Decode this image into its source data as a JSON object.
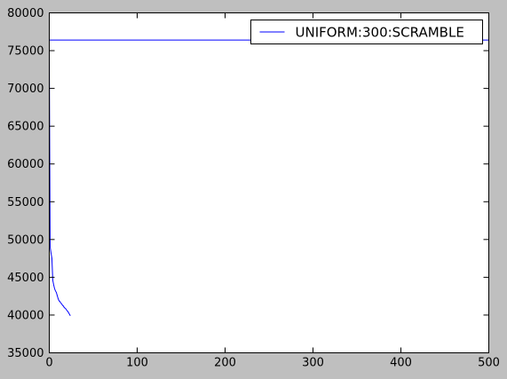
{
  "chart_data": {
    "type": "line",
    "title": "",
    "xlabel": "",
    "ylabel": "",
    "xlim": [
      0,
      500
    ],
    "ylim": [
      35000,
      80000
    ],
    "x_ticks": [
      0,
      100,
      200,
      300,
      400,
      500
    ],
    "y_ticks": [
      35000,
      40000,
      45000,
      50000,
      55000,
      60000,
      65000,
      70000,
      75000,
      80000
    ],
    "grid": false,
    "legend_position": "top-right",
    "series": [
      {
        "name": "UNIFORM:300:SCRAMBLE",
        "color": "#0000ff",
        "x": [
          500,
          0,
          0,
          0.5,
          1,
          2,
          3,
          4,
          5,
          6,
          7,
          8,
          9,
          10,
          11,
          12,
          13,
          14,
          15,
          16,
          17,
          18,
          19,
          20,
          21,
          22,
          23,
          24
        ],
        "y": [
          76400,
          76400,
          75500,
          62000,
          49000,
          48200,
          47500,
          44600,
          44000,
          43500,
          43200,
          43000,
          42600,
          42200,
          41900,
          41800,
          41600,
          41500,
          41300,
          41200,
          41000,
          40900,
          40800,
          40600,
          40500,
          40300,
          40100,
          39900
        ]
      }
    ]
  }
}
